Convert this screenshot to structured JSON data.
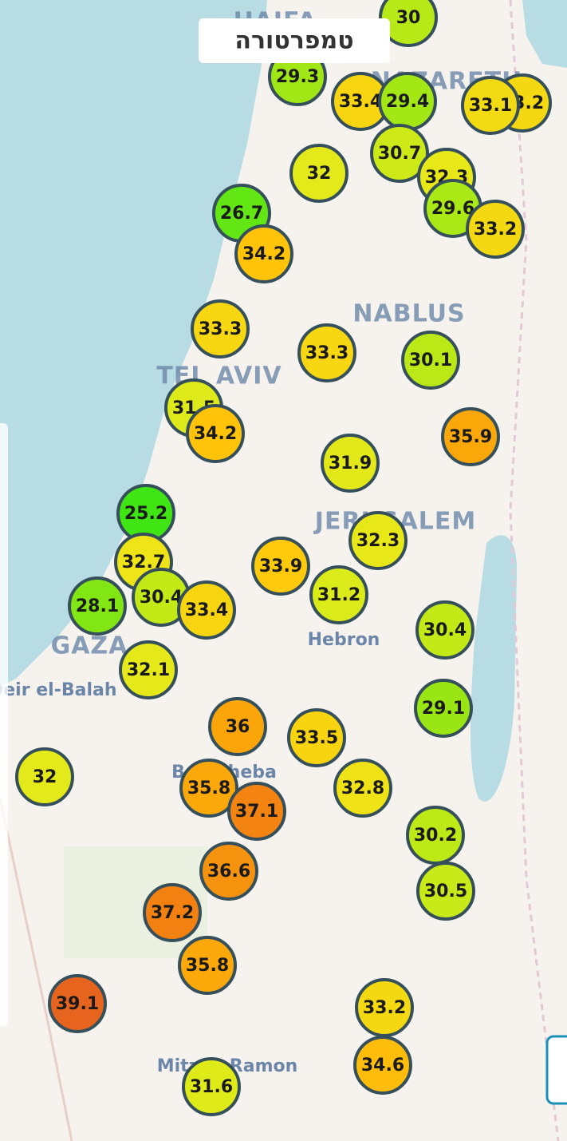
{
  "title": "טמפרטורה",
  "places": [
    "HAIFA",
    "NAZARETH",
    "NABLUS",
    "TEL AVIV",
    "JERUSALEM",
    "Hebron",
    "GAZA",
    "Deir el-Balah",
    "Beersheba",
    "Mitzpe Ramon"
  ],
  "markers": [
    {
      "value": 30
    },
    {
      "value": 29.3
    },
    {
      "value": 33.4
    },
    {
      "value": 29.4
    },
    {
      "value": 33.2
    },
    {
      "value": 33.1
    },
    {
      "value": 32
    },
    {
      "value": 30.7
    },
    {
      "value": 32.3
    },
    {
      "value": 29.6
    },
    {
      "value": 33.2
    },
    {
      "value": 26.7
    },
    {
      "value": 34.2
    },
    {
      "value": 33.3
    },
    {
      "value": 33.3
    },
    {
      "value": 30.1
    },
    {
      "value": 31.5
    },
    {
      "value": 34.2
    },
    {
      "value": 35.9
    },
    {
      "value": 31.9
    },
    {
      "value": 25.2
    },
    {
      "value": 32.7
    },
    {
      "value": 32.3
    },
    {
      "value": 33.9
    },
    {
      "value": 30.4
    },
    {
      "value": 33.4
    },
    {
      "value": 28.1
    },
    {
      "value": 31.2
    },
    {
      "value": 30.4
    },
    {
      "value": 32.1
    },
    {
      "value": 29.1
    },
    {
      "value": 36
    },
    {
      "value": 33.5
    },
    {
      "value": 32
    },
    {
      "value": 35.8
    },
    {
      "value": 37.1
    },
    {
      "value": 32.8
    },
    {
      "value": 30.2
    },
    {
      "value": 36.6
    },
    {
      "value": 30.5
    },
    {
      "value": 37.2
    },
    {
      "value": 35.8
    },
    {
      "value": 39.1
    },
    {
      "value": 33.2
    },
    {
      "value": 34.6
    },
    {
      "value": 31.6
    }
  ]
}
